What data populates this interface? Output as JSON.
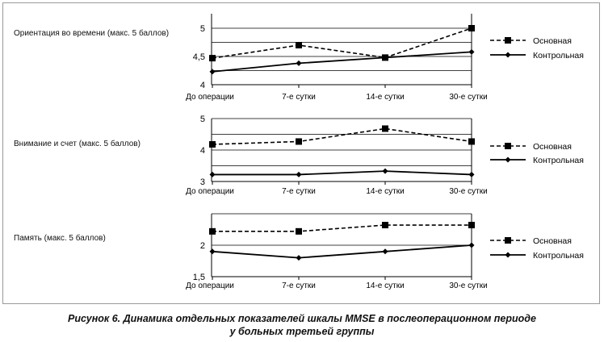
{
  "chart_data": [
    {
      "type": "line",
      "title": "Ориентация во времени (макс. 5 баллов)",
      "categories": [
        "До операции",
        "7-е сутки",
        "14-е сутки",
        "30-е сутки"
      ],
      "ylim": [
        4,
        5
      ],
      "yticks": [
        "4",
        "4,5",
        "5"
      ],
      "ytick_values": [
        4,
        4.5,
        5
      ],
      "grid": [
        4.25,
        4.5,
        4.75,
        5
      ],
      "series": [
        {
          "name": "Основная",
          "style": "dashed",
          "marker": "square",
          "values": [
            4.47,
            4.7,
            4.48,
            5.0
          ]
        },
        {
          "name": "Контрольная",
          "style": "solid",
          "marker": "diamond",
          "values": [
            4.23,
            4.38,
            4.48,
            4.58
          ]
        }
      ],
      "legend": "right"
    },
    {
      "type": "line",
      "title": "Внимание и счет (макс. 5 баллов)",
      "categories": [
        "До операции",
        "7-е сутки",
        "14-е сутки",
        "30-е сутки"
      ],
      "ylim": [
        3,
        5
      ],
      "yticks": [
        "3",
        "4",
        "5"
      ],
      "ytick_values": [
        3,
        4,
        5
      ],
      "grid": [
        3.5,
        4,
        4.5,
        5
      ],
      "series": [
        {
          "name": "Основная",
          "style": "dashed",
          "marker": "square",
          "values": [
            4.18,
            4.27,
            4.68,
            4.27
          ]
        },
        {
          "name": "Контрольная",
          "style": "solid",
          "marker": "diamond",
          "values": [
            3.22,
            3.22,
            3.33,
            3.22
          ]
        }
      ],
      "legend": "right"
    },
    {
      "type": "line",
      "title": "Память (макс. 5 баллов)",
      "categories": [
        "До операции",
        "7-е сутки",
        "14-е сутки",
        "30-е сутки"
      ],
      "ylim": [
        1.5,
        2.5
      ],
      "yticks": [
        "1,5",
        "2"
      ],
      "ytick_values": [
        1.5,
        2
      ],
      "grid": [
        2,
        2.5
      ],
      "series": [
        {
          "name": "Основная",
          "style": "dashed",
          "marker": "square",
          "values": [
            2.22,
            2.22,
            2.32,
            2.32
          ]
        },
        {
          "name": "Контрольная",
          "style": "solid",
          "marker": "diamond",
          "values": [
            1.9,
            1.8,
            1.9,
            2.0
          ]
        }
      ],
      "legend": "right"
    }
  ],
  "caption": {
    "line1": "Рисунок 6. Динамика отдельных показателей шкалы MMSE в послеоперационном периоде",
    "line2": "у больных третьей группы"
  }
}
